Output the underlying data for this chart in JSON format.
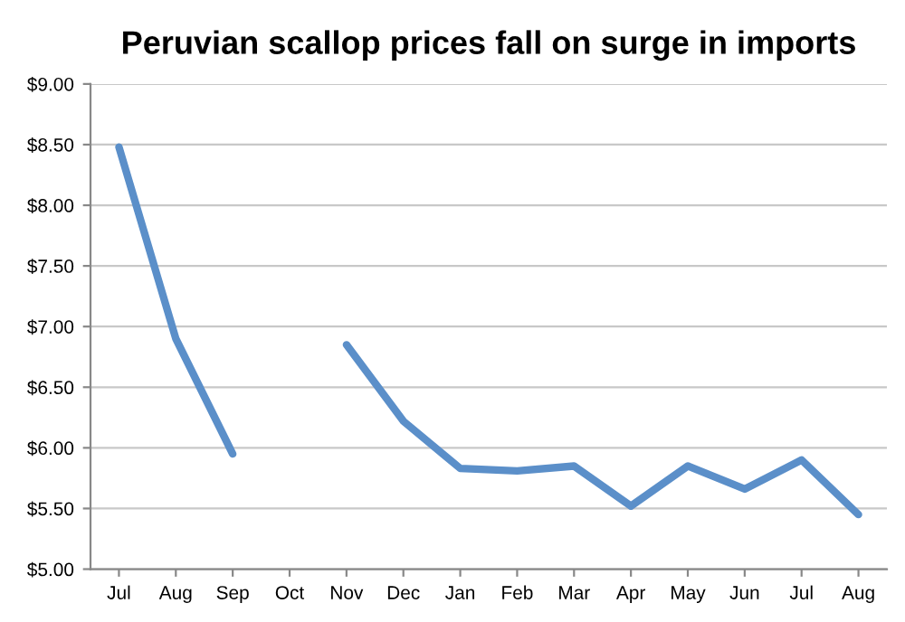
{
  "chart_data": {
    "type": "line",
    "title": "Peruvian scallop prices fall on surge in imports",
    "categories": [
      "Jul",
      "Aug",
      "Sep",
      "Oct",
      "Nov",
      "Dec",
      "Jan",
      "Feb",
      "Mar",
      "Apr",
      "May",
      "Jun",
      "Jul",
      "Aug"
    ],
    "series": [
      {
        "color": "#5b8fc9",
        "values": [
          8.48,
          6.9,
          5.95,
          null,
          6.85,
          6.22,
          5.83,
          5.81,
          5.85,
          5.52,
          5.85,
          5.66,
          5.9,
          5.45
        ]
      }
    ],
    "ylim": [
      5,
      9
    ],
    "yticks": [
      {
        "value": 5,
        "label": "$5.00"
      },
      {
        "value": 5.5,
        "label": "$5.50"
      },
      {
        "value": 6,
        "label": "$6.00"
      },
      {
        "value": 6.5,
        "label": "$6.50"
      },
      {
        "value": 7,
        "label": "$7.00"
      },
      {
        "value": 7.5,
        "label": "$7.50"
      },
      {
        "value": 8,
        "label": "$8.00"
      },
      {
        "value": 8.5,
        "label": "$8.50"
      },
      {
        "value": 9,
        "label": "$9.00"
      }
    ],
    "grid": "y",
    "marker": "none",
    "line_style": "solid"
  }
}
